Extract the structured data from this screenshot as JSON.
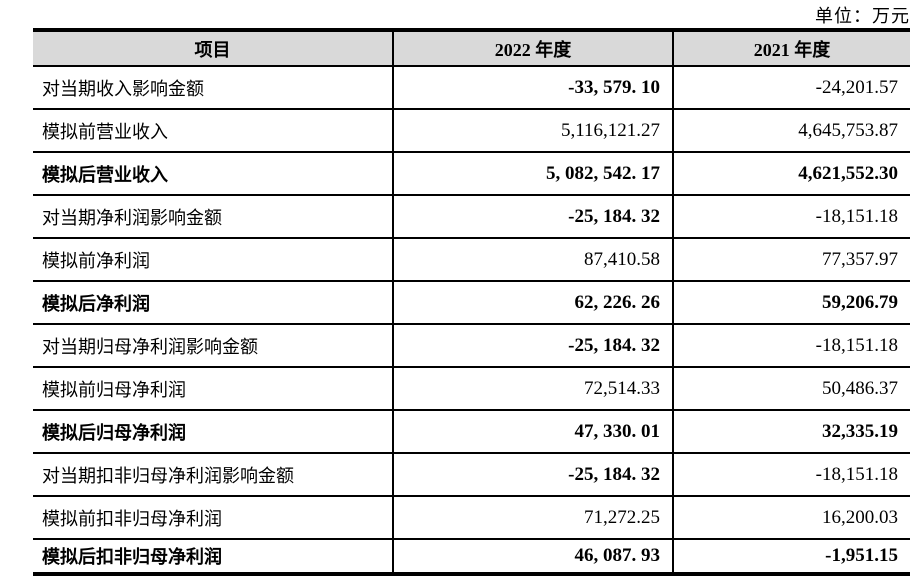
{
  "page": {
    "unit_label": "单位：万元"
  },
  "table": {
    "header_bg": "#d9d9d9",
    "border_color": "#000000",
    "columns": [
      {
        "label": "项目"
      },
      {
        "label": "2022 年度"
      },
      {
        "label": "2021 年度"
      }
    ],
    "rows": [
      {
        "label": "对当期收入影响金额",
        "v2022": "-33, 579. 10",
        "v2021": "-24,201.57",
        "label_bold": false,
        "v2022_bold": true,
        "v2021_bold": false
      },
      {
        "label": "模拟前营业收入",
        "v2022": "5,116,121.27",
        "v2021": "4,645,753.87",
        "label_bold": false,
        "v2022_bold": false,
        "v2021_bold": false
      },
      {
        "label": "模拟后营业收入",
        "v2022": "5, 082, 542. 17",
        "v2021": "4,621,552.30",
        "label_bold": true,
        "v2022_bold": true,
        "v2021_bold": true
      },
      {
        "label": "对当期净利润影响金额",
        "v2022": "-25, 184. 32",
        "v2021": "-18,151.18",
        "label_bold": false,
        "v2022_bold": true,
        "v2021_bold": false
      },
      {
        "label": "模拟前净利润",
        "v2022": "87,410.58",
        "v2021": "77,357.97",
        "label_bold": false,
        "v2022_bold": false,
        "v2021_bold": false
      },
      {
        "label": "模拟后净利润",
        "v2022": "62, 226. 26",
        "v2021": "59,206.79",
        "label_bold": true,
        "v2022_bold": true,
        "v2021_bold": true
      },
      {
        "label": "对当期归母净利润影响金额",
        "v2022": "-25, 184. 32",
        "v2021": "-18,151.18",
        "label_bold": false,
        "v2022_bold": true,
        "v2021_bold": false
      },
      {
        "label": "模拟前归母净利润",
        "v2022": "72,514.33",
        "v2021": "50,486.37",
        "label_bold": false,
        "v2022_bold": false,
        "v2021_bold": false
      },
      {
        "label": "模拟后归母净利润",
        "v2022": "47, 330. 01",
        "v2021": "32,335.19",
        "label_bold": true,
        "v2022_bold": true,
        "v2021_bold": true
      },
      {
        "label": "对当期扣非归母净利润影响金额",
        "v2022": "-25, 184. 32",
        "v2021": "-18,151.18",
        "label_bold": false,
        "v2022_bold": true,
        "v2021_bold": false
      },
      {
        "label": "模拟前扣非归母净利润",
        "v2022": "71,272.25",
        "v2021": "16,200.03",
        "label_bold": false,
        "v2022_bold": false,
        "v2021_bold": false
      },
      {
        "label": "模拟后扣非归母净利润",
        "v2022": "46, 087. 93",
        "v2021": "-1,951.15",
        "label_bold": true,
        "v2022_bold": true,
        "v2021_bold": true
      }
    ]
  }
}
